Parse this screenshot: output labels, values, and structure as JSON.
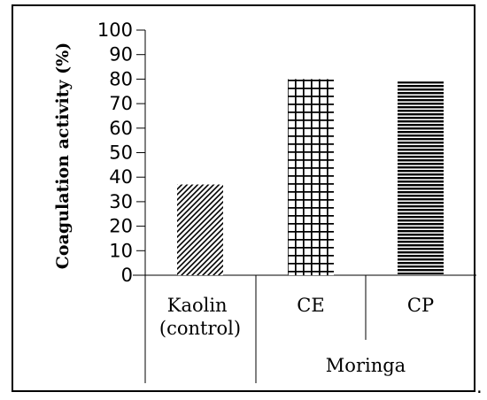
{
  "chart_data": {
    "type": "bar",
    "categories": [
      "Kaolin (control)",
      "CE",
      "CP"
    ],
    "category_lines": [
      [
        "Kaolin",
        "(control)"
      ],
      [
        "CE"
      ],
      [
        "CP"
      ]
    ],
    "values": [
      37,
      80,
      79
    ],
    "patterns": [
      "diagonal-hatch",
      "grid",
      "horizontal-lines"
    ],
    "group_label": "Moringa",
    "group_members": [
      "CE",
      "CP"
    ],
    "ylabel": "Coagulation activity (%)",
    "xlabel": "",
    "title": "",
    "ylim": [
      0,
      100
    ],
    "yticks": [
      "0",
      "10",
      "20",
      "30",
      "40",
      "50",
      "60",
      "70",
      "80",
      "90",
      "100"
    ],
    "grid": false,
    "legend": "none"
  },
  "trailing_mark": "."
}
